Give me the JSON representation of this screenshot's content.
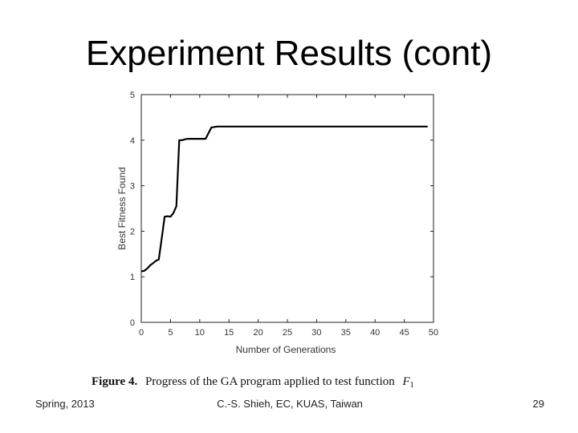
{
  "slide": {
    "title": "Experiment Results (cont)",
    "footer_left": "Spring, 2013",
    "footer_center": "C.-S. Shieh, EC, KUAS, Taiwan",
    "footer_right": "29"
  },
  "figure": {
    "caption_label": "Figure 4.",
    "caption_text": "Progress of the GA program applied to test function",
    "caption_function": "F",
    "caption_subscript": "1"
  },
  "chart_data": {
    "type": "line",
    "title": "",
    "xlabel": "Number of Generations",
    "ylabel": "Best Fitness Found",
    "xlim": [
      0,
      50
    ],
    "ylim": [
      0,
      5
    ],
    "xticks": [
      0,
      5,
      10,
      15,
      20,
      25,
      30,
      35,
      40,
      45,
      50
    ],
    "yticks": [
      0,
      1,
      2,
      3,
      4,
      5
    ],
    "grid": false,
    "line_color": "#000000",
    "series": [
      {
        "x": [
          0,
          0.5,
          1,
          1.5,
          2,
          2.5,
          3,
          3.5,
          4,
          4.5,
          5,
          5.5,
          6,
          6.5,
          7,
          7.5,
          8,
          8.5,
          9,
          10,
          11,
          12,
          13,
          14,
          15,
          20,
          25,
          30,
          35,
          40,
          45,
          49
        ],
        "y": [
          1.12,
          1.13,
          1.18,
          1.25,
          1.3,
          1.35,
          1.38,
          1.85,
          2.32,
          2.33,
          2.32,
          2.4,
          2.55,
          4.0,
          4.0,
          4.02,
          4.03,
          4.03,
          4.03,
          4.03,
          4.03,
          4.28,
          4.3,
          4.3,
          4.3,
          4.3,
          4.3,
          4.3,
          4.3,
          4.3,
          4.3,
          4.3
        ]
      }
    ]
  }
}
